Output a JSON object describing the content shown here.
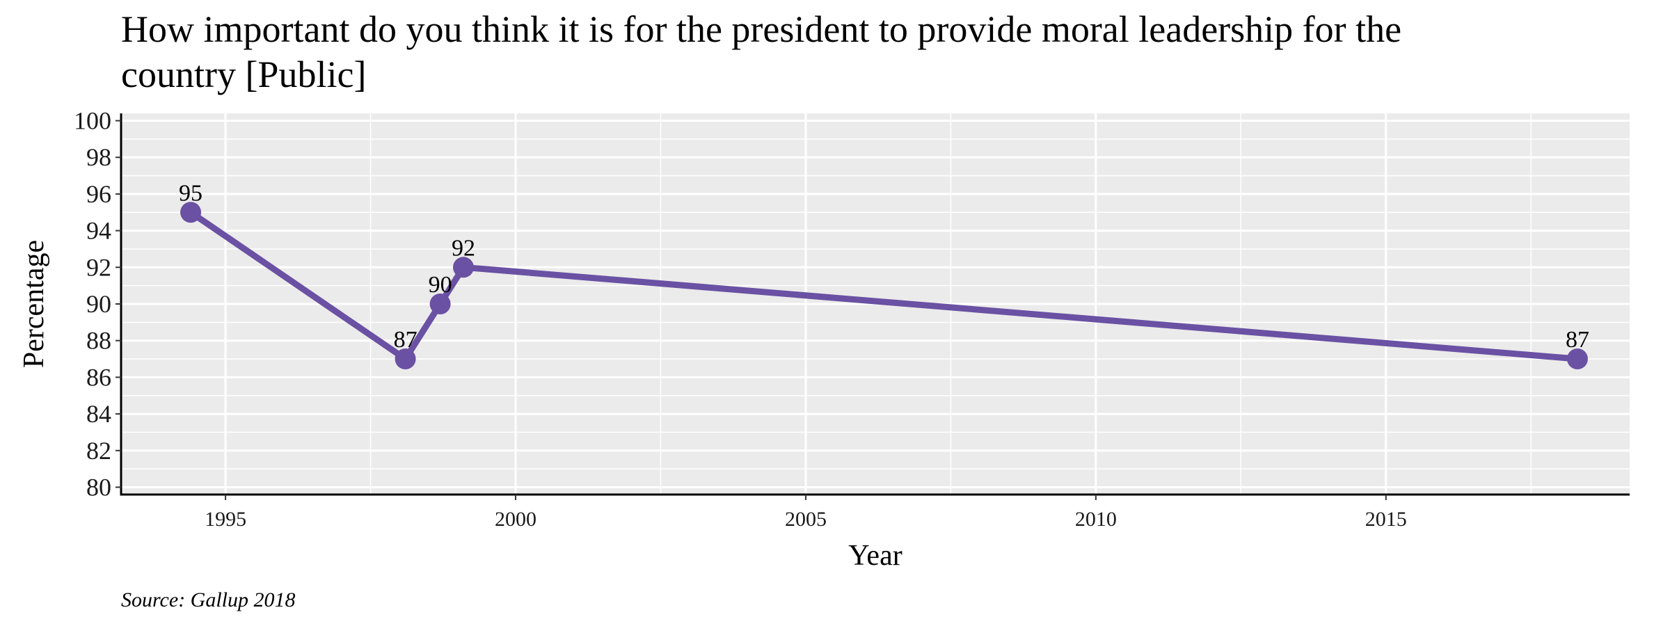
{
  "chart_data": {
    "type": "line",
    "title_lines": [
      "How important do you think it is for the president to provide moral leadership for the",
      "country [Public]"
    ],
    "xlabel": "Year",
    "ylabel": "Percentage",
    "caption": "Source: Gallup 2018",
    "xlim": [
      1993.2,
      2019.2
    ],
    "ylim": [
      79.6,
      100.4
    ],
    "x_ticks": [
      1995,
      2000,
      2005,
      2010,
      2015
    ],
    "y_ticks": [
      80,
      82,
      84,
      86,
      88,
      90,
      92,
      94,
      96,
      98,
      100
    ],
    "series": [
      {
        "x": [
          1994.4,
          1998.1,
          1998.7,
          1999.1,
          2018.3
        ],
        "values": [
          95,
          87,
          90,
          92,
          87
        ],
        "labels": [
          "95",
          "87",
          "90",
          "92",
          "87"
        ],
        "color": "#6a51a3"
      }
    ],
    "panel_color": "#ebebeb",
    "grid_color": "#ffffff",
    "grid": true
  }
}
